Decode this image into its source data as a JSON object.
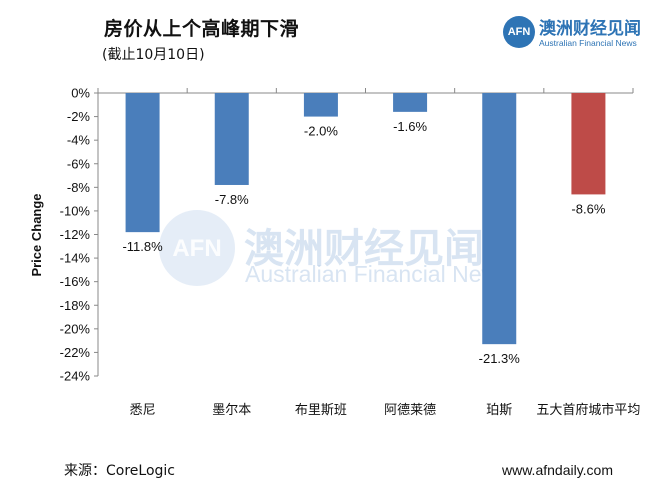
{
  "header": {
    "title": "房价从上个高峰期下滑",
    "subtitle": "(截止10月10日)"
  },
  "logo": {
    "mark": "AFN",
    "name_cn": "澳洲财经见闻",
    "name_en": "Australian Financial News"
  },
  "watermark": {
    "mark": "AFN",
    "name_cn": "澳洲财经见闻",
    "name_en": "Australian Financial News"
  },
  "footer": {
    "source": "来源：CoreLogic",
    "website": "www.afndaily.com"
  },
  "chart_data": {
    "type": "bar",
    "title": "房价从上个高峰期下滑",
    "ylabel": "Price Change",
    "xlabel": "",
    "ylim": [
      -24,
      0
    ],
    "yticks": [
      0,
      -2,
      -4,
      -6,
      -8,
      -10,
      -12,
      -14,
      -16,
      -18,
      -20,
      -22,
      -24
    ],
    "ytick_labels": [
      "0%",
      "-2%",
      "-4%",
      "-6%",
      "-8%",
      "-10%",
      "-12%",
      "-14%",
      "-16%",
      "-18%",
      "-20%",
      "-22%",
      "-24%"
    ],
    "categories": [
      "悉尼",
      "墨尔本",
      "布里斯班",
      "阿德莱德",
      "珀斯",
      "五大首府城市平均"
    ],
    "values": [
      -11.8,
      -7.8,
      -2.0,
      -1.6,
      -21.3,
      -8.6
    ],
    "data_labels": [
      "-11.8%",
      "-7.8%",
      "-2.0%",
      "-1.6%",
      "-21.3%",
      "-8.6%"
    ],
    "colors": [
      "#4a7ebb",
      "#4a7ebb",
      "#4a7ebb",
      "#4a7ebb",
      "#4a7ebb",
      "#be4b48"
    ]
  }
}
